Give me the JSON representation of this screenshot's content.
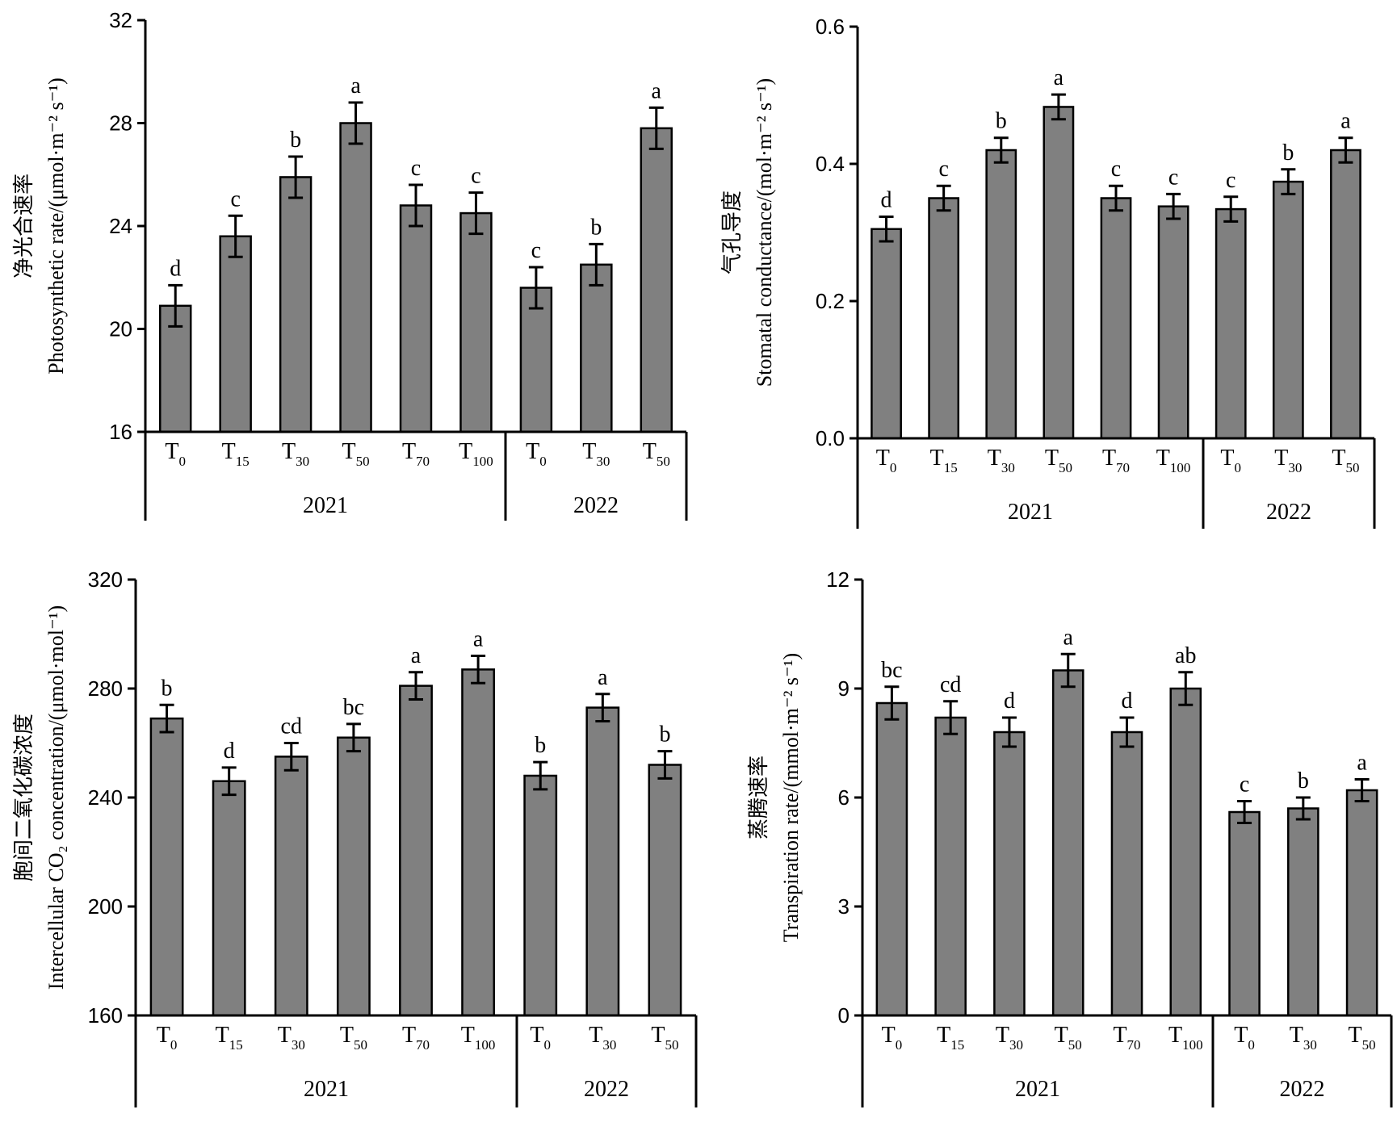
{
  "chart_data": [
    {
      "type": "bar",
      "ylabel_zh": "净光合速率",
      "ylabel": "Photosynthetic rate/(μmol·m⁻² s⁻¹)",
      "ylim": [
        16,
        32
      ],
      "yticks": [
        16,
        20,
        24,
        28,
        32
      ],
      "groups": [
        {
          "label": "2021",
          "categories": [
            "T0",
            "T15",
            "T30",
            "T50",
            "T70",
            "T100"
          ]
        },
        {
          "label": "2022",
          "categories": [
            "T0",
            "T30",
            "T50"
          ]
        }
      ],
      "values": [
        20.9,
        23.6,
        25.9,
        28.0,
        24.8,
        24.5,
        21.6,
        22.5,
        27.8
      ],
      "errors": [
        0.8,
        0.8,
        0.8,
        0.8,
        0.8,
        0.8,
        0.8,
        0.8,
        0.8
      ],
      "significance": [
        "d",
        "c",
        "b",
        "a",
        "c",
        "c",
        "c",
        "b",
        "a"
      ],
      "color": "#808080"
    },
    {
      "type": "bar",
      "ylabel_zh": "气孔导度",
      "ylabel": "Stomatal conductance/(mol·m⁻² s⁻¹)",
      "ylim": [
        0.0,
        0.6
      ],
      "yticks": [
        "0.0",
        "0.2",
        "0.4",
        "0.6"
      ],
      "groups": [
        {
          "label": "2021",
          "categories": [
            "T0",
            "T15",
            "T30",
            "T50",
            "T70",
            "T100"
          ]
        },
        {
          "label": "2022",
          "categories": [
            "T0",
            "T30",
            "T50"
          ]
        }
      ],
      "values": [
        0.305,
        0.35,
        0.42,
        0.483,
        0.35,
        0.338,
        0.334,
        0.374,
        0.42
      ],
      "errors": [
        0.018,
        0.018,
        0.018,
        0.018,
        0.018,
        0.018,
        0.018,
        0.018,
        0.018
      ],
      "significance": [
        "d",
        "c",
        "b",
        "a",
        "c",
        "c",
        "c",
        "b",
        "a"
      ],
      "color": "#808080"
    },
    {
      "type": "bar",
      "ylabel_zh": "胞间二氧化碳浓度",
      "ylabel": "Intercellular CO₂ concentration/(μmol·mol⁻¹)",
      "ylim": [
        160,
        320
      ],
      "yticks": [
        160,
        200,
        240,
        280,
        320
      ],
      "groups": [
        {
          "label": "2021",
          "categories": [
            "T0",
            "T15",
            "T30",
            "T50",
            "T70",
            "T100"
          ]
        },
        {
          "label": "2022",
          "categories": [
            "T0",
            "T30",
            "T50"
          ]
        }
      ],
      "values": [
        269,
        246,
        255,
        262,
        281,
        287,
        248,
        273,
        252
      ],
      "errors": [
        5,
        5,
        5,
        5,
        5,
        5,
        5,
        5,
        5
      ],
      "significance": [
        "b",
        "d",
        "cd",
        "bc",
        "a",
        "a",
        "b",
        "a",
        "b"
      ],
      "color": "#808080"
    },
    {
      "type": "bar",
      "ylabel_zh": "蒸腾速率",
      "ylabel": "Transpiration rate/(mmol·m⁻² s⁻¹)",
      "ylim": [
        0,
        12
      ],
      "yticks": [
        0,
        3,
        6,
        9,
        12
      ],
      "groups": [
        {
          "label": "2021",
          "categories": [
            "T0",
            "T15",
            "T30",
            "T50",
            "T70",
            "T100"
          ]
        },
        {
          "label": "2022",
          "categories": [
            "T0",
            "T30",
            "T50"
          ]
        }
      ],
      "values": [
        8.6,
        8.2,
        7.8,
        9.5,
        7.8,
        9.0,
        5.6,
        5.7,
        6.2
      ],
      "errors": [
        0.45,
        0.45,
        0.4,
        0.45,
        0.4,
        0.45,
        0.3,
        0.3,
        0.3
      ],
      "significance": [
        "bc",
        "cd",
        "d",
        "a",
        "d",
        "ab",
        "c",
        "b",
        "a"
      ],
      "color": "#808080"
    }
  ]
}
